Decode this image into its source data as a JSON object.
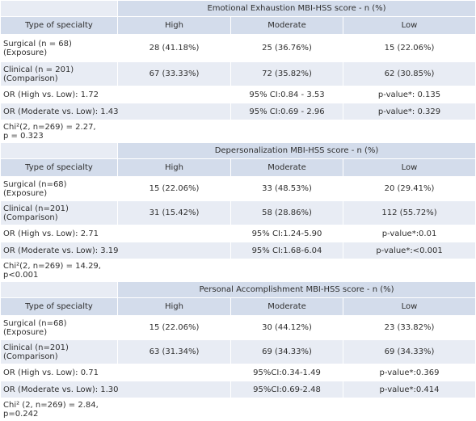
{
  "sections": [
    {
      "title": "Emotional Exhaustion MBI-HSS score - n (%)",
      "col_header": "Type of specialty",
      "levels": [
        "High",
        "Moderate",
        "Low"
      ],
      "rows": [
        {
          "group": "Surgical (n = 68)\n(Exposure)",
          "values": [
            "28 (41.18%)",
            "25 (36.76%)",
            "15 (22.06%)"
          ]
        },
        {
          "group": "Clinical (n = 201)\n(Comparison)",
          "values": [
            "67 (33.33%)",
            "72 (35.82%)",
            "62 (30.85%)"
          ]
        }
      ],
      "or_rows": [
        {
          "label": "OR (High vs. Low): 1.72",
          "ci": "95% CI:0.84 - 3.53",
          "p": "p-value*: 0.135"
        },
        {
          "label": "OR (Moderate vs. Low): 1.43",
          "ci": "95% CI:0.69 - 2.96",
          "p": "p-value*: 0.329"
        }
      ],
      "chi": "Chi²(2, n=269) = 2.27,\np = 0.323"
    },
    {
      "title": "Depersonalization MBI-HSS score - n (%)",
      "col_header": "Type of specialty",
      "levels": [
        "High",
        "Moderate",
        "Low"
      ],
      "rows": [
        {
          "group": "Surgical (n=68)\n(Exposure)",
          "values": [
            "15 (22.06%)",
            "33 (48.53%)",
            "20 (29.41%)"
          ]
        },
        {
          "group": "Clinical (n=201)\n(Comparison)",
          "values": [
            "31 (15.42%)",
            "58 (28.86%)",
            "112 (55.72%)"
          ]
        }
      ],
      "or_rows": [
        {
          "label": "OR (High vs. Low): 2.71",
          "ci": "95% CI:1.24-5.90",
          "p": "p-value*:0.01"
        },
        {
          "label": "OR (Moderate vs. Low): 3.19",
          "ci": "95% CI:1.68-6.04",
          "p": "p-value*:<0.001"
        }
      ],
      "chi": "Chi²(2, n=269) = 14.29,\np<0.001"
    },
    {
      "title": "Personal Accomplishment MBI-HSS score - n (%)",
      "col_header": "Type of specialty",
      "levels": [
        "High",
        "Moderate",
        "Low"
      ],
      "rows": [
        {
          "group": "Surgical (n=68)\n(Exposure)",
          "values": [
            "15 (22.06%)",
            "30 (44.12%)",
            "23 (33.82%)"
          ]
        },
        {
          "group": "Clinical (n=201)\n(Comparison)",
          "values": [
            "63 (31.34%)",
            "69 (34.33%)",
            "69 (34.33%)"
          ]
        }
      ],
      "or_rows": [
        {
          "label": "OR (High vs. Low): 0.71",
          "ci": "95%CI:0.34-1.49",
          "p": "p-value*:0.369"
        },
        {
          "label": "OR (Moderate vs. Low): 1.30",
          "ci": "95%CI:0.69-2.48",
          "p": "p-value*:0.414"
        }
      ],
      "chi": "Chi² (2, n=269) = 2.84,\np=0.242"
    }
  ]
}
